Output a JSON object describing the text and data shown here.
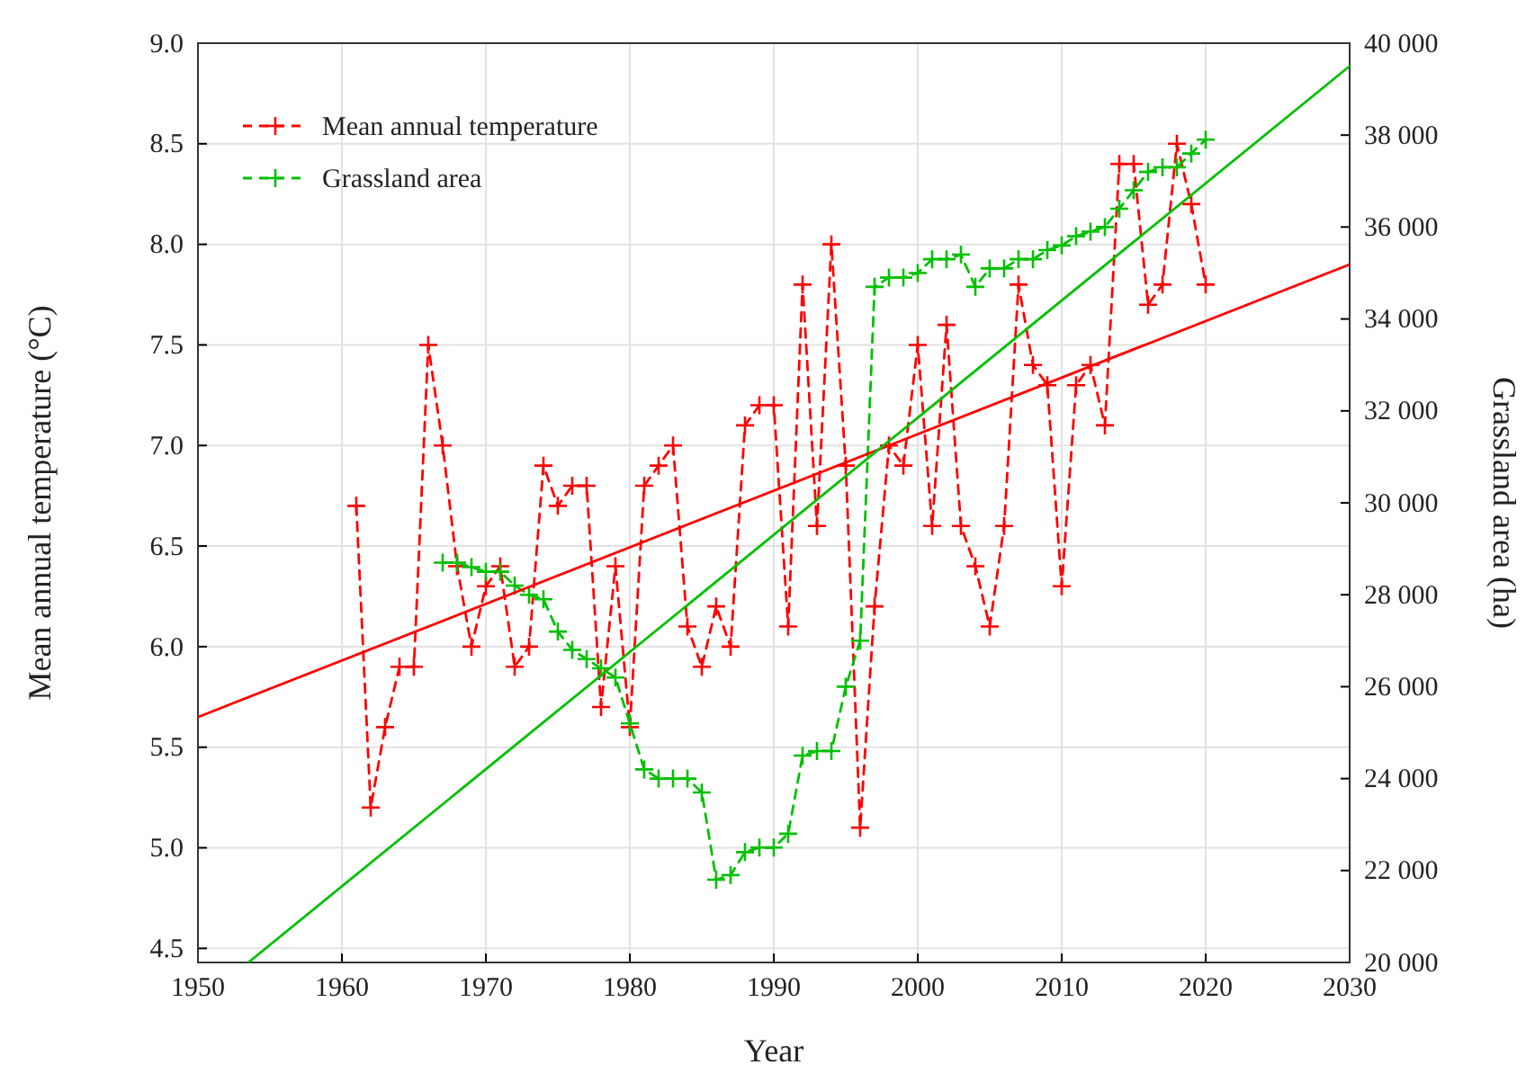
{
  "chart_data": {
    "type": "line",
    "xlabel": "Year",
    "ylabel": "Mean annual temperature (°C)",
    "y2label": "Grassland area (ha)",
    "xlim": [
      1950,
      2030
    ],
    "xticks": [
      1950,
      1960,
      1970,
      1980,
      1990,
      2000,
      2010,
      2020,
      2030
    ],
    "ylim": [
      4.43,
      9.0
    ],
    "yticks": [
      4.5,
      {
        "value": 5,
        "label": "5.0"
      },
      5.5,
      {
        "value": 6,
        "label": "6.0"
      },
      6.5,
      {
        "value": 7,
        "label": "7.0"
      },
      7.5,
      {
        "value": 8,
        "label": "8.0"
      },
      8.5,
      {
        "value": 9,
        "label": "9.0"
      }
    ],
    "y2lim": [
      20000,
      40000
    ],
    "y2ticks": [
      {
        "value": 20000,
        "label": "20 000"
      },
      {
        "value": 22000,
        "label": "22 000"
      },
      {
        "value": 24000,
        "label": "24 000"
      },
      {
        "value": 26000,
        "label": "26 000"
      },
      {
        "value": 28000,
        "label": "28 000"
      },
      {
        "value": 30000,
        "label": "30 000"
      },
      {
        "value": 32000,
        "label": "32 000"
      },
      {
        "value": 34000,
        "label": "34 000"
      },
      {
        "value": 36000,
        "label": "36 000"
      },
      {
        "value": 38000,
        "label": "38 000"
      },
      {
        "value": 40000,
        "label": "40 000"
      }
    ],
    "grid": true,
    "legend": "top left",
    "series": [
      {
        "name": "Mean annual temperature",
        "color": "#ff0000",
        "marker": "cross",
        "line_style": "dashed",
        "x": [
          1961,
          1962,
          1963,
          1964,
          1965,
          1966,
          1967,
          1968,
          1969,
          1970,
          1971,
          1972,
          1973,
          1974,
          1975,
          1976,
          1977,
          1978,
          1979,
          1980,
          1981,
          1982,
          1983,
          1984,
          1985,
          1986,
          1987,
          1988,
          1989,
          1990,
          1991,
          1992,
          1993,
          1994,
          1995,
          1996,
          1997,
          1998,
          1999,
          2000,
          2001,
          2002,
          2003,
          2004,
          2005,
          2006,
          2007,
          2008,
          2009,
          2010,
          2011,
          2012,
          2013,
          2014,
          2015,
          2016,
          2017,
          2018,
          2019,
          2020
        ],
        "values": [
          6.7,
          5.2,
          5.6,
          5.9,
          5.9,
          7.5,
          7.0,
          6.4,
          6.0,
          6.3,
          6.4,
          5.9,
          6.0,
          6.9,
          6.7,
          6.8,
          6.8,
          5.7,
          6.4,
          5.6,
          6.8,
          6.9,
          7.0,
          6.1,
          5.9,
          6.2,
          6.0,
          7.1,
          7.2,
          7.2,
          6.1,
          7.8,
          6.6,
          8.0,
          6.9,
          5.1,
          6.2,
          7.0,
          6.9,
          7.5,
          6.6,
          7.6,
          6.6,
          6.4,
          6.1,
          6.6,
          7.8,
          7.4,
          7.3,
          6.3,
          7.3,
          7.4,
          7.1,
          8.4,
          8.4,
          7.7,
          7.8,
          8.5,
          8.2,
          7.8
        ]
      },
      {
        "name": "Grassland area",
        "color": "#00c000",
        "marker": "cross",
        "line_style": "dashed",
        "axis": "y2",
        "x": [
          1967,
          1968,
          1969,
          1970,
          1971,
          1972,
          1973,
          1974,
          1975,
          1976,
          1977,
          1978,
          1979,
          1980,
          1981,
          1982,
          1983,
          1984,
          1985,
          1986,
          1987,
          1988,
          1989,
          1990,
          1991,
          1992,
          1993,
          1994,
          1995,
          1996,
          1997,
          1998,
          1999,
          2000,
          2001,
          2002,
          2003,
          2004,
          2005,
          2006,
          2007,
          2008,
          2009,
          2010,
          2011,
          2012,
          2013,
          2014,
          2015,
          2016,
          2017,
          2018,
          2019,
          2020
        ],
        "values": [
          28700,
          28700,
          28600,
          28500,
          28500,
          28200,
          28000,
          27900,
          27200,
          26800,
          26600,
          26400,
          26200,
          25200,
          24200,
          24000,
          24000,
          24000,
          23700,
          21800,
          21900,
          22400,
          22500,
          22500,
          22800,
          24500,
          24600,
          24600,
          26000,
          27000,
          34700,
          34900,
          34900,
          35000,
          35300,
          35300,
          35400,
          34700,
          35100,
          35100,
          35300,
          35300,
          35500,
          35600,
          35800,
          35900,
          36000,
          36400,
          36800,
          37200,
          37300,
          37300,
          37600,
          37900
        ]
      },
      {
        "color": "#ff0000",
        "marker": "none",
        "line_style": "solid",
        "x": [
          1950,
          2030
        ],
        "values": [
          5.65,
          7.9
        ]
      },
      {
        "color": "#00c000",
        "marker": "none",
        "line_style": "solid",
        "axis": "y2",
        "x": [
          1953.5,
          2030
        ],
        "values": [
          20000,
          39500
        ]
      }
    ]
  }
}
